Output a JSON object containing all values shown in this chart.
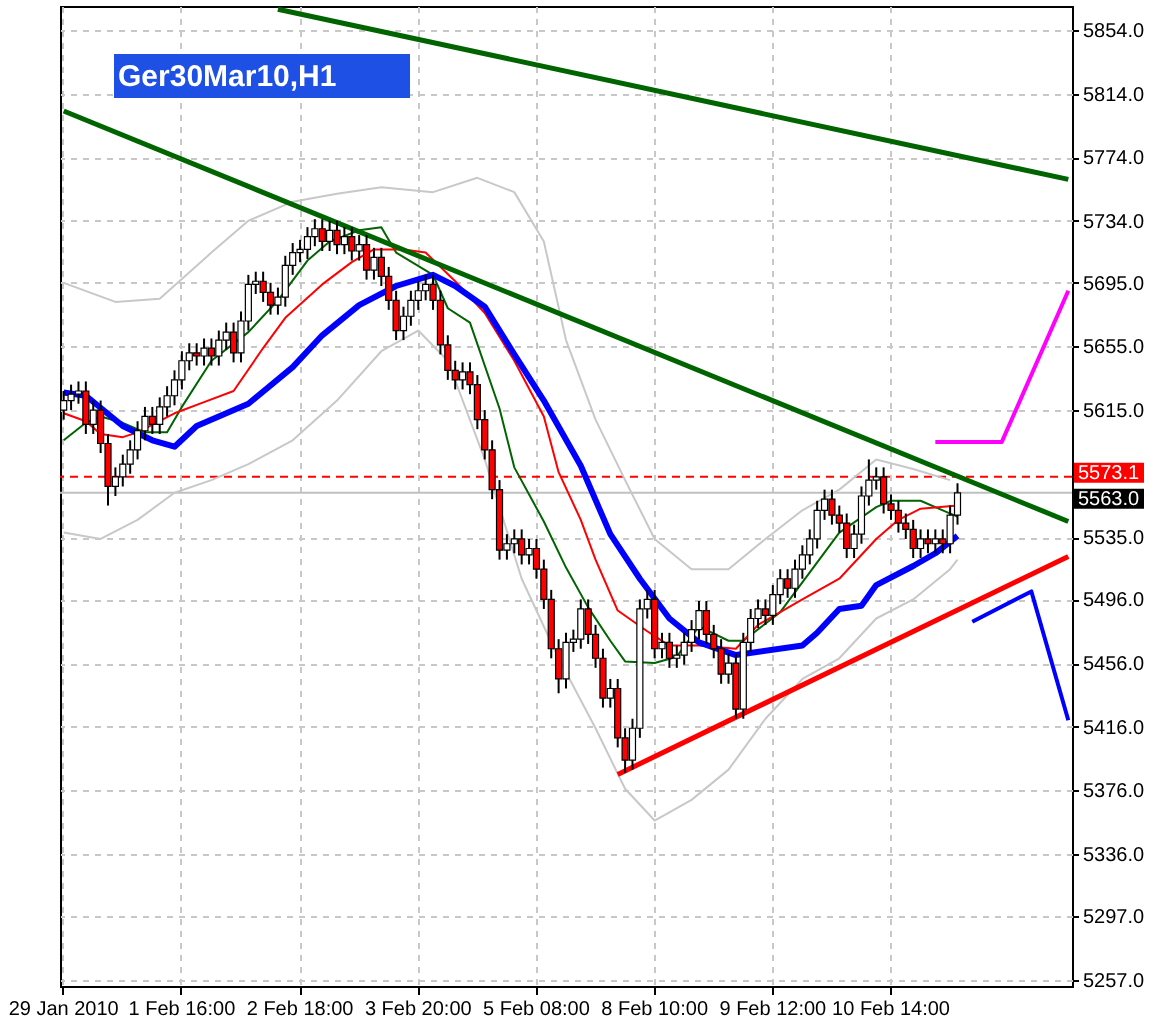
{
  "chart_data": {
    "type": "candlestick",
    "title": "Ger30Mar10,H1",
    "categories": [
      "29 Jan 2010",
      null,
      null,
      null,
      null,
      null,
      null,
      null,
      null,
      null,
      null,
      null,
      null,
      null,
      null,
      null,
      "1 Feb 16:00",
      null,
      null,
      null,
      null,
      null,
      null,
      null,
      null,
      null,
      null,
      null,
      null,
      null,
      null,
      null,
      "2 Feb 18:00",
      null,
      null,
      null,
      null,
      null,
      null,
      null,
      null,
      null,
      null,
      null,
      null,
      null,
      null,
      null,
      "3 Feb 20:00",
      null,
      null,
      null,
      null,
      null,
      null,
      null,
      null,
      null,
      null,
      null,
      null,
      null,
      null,
      null,
      "5 Feb 08:00",
      null,
      null,
      null,
      null,
      null,
      null,
      null,
      null,
      null,
      null,
      null,
      null,
      null,
      null,
      null,
      "8 Feb 10:00",
      null,
      null,
      null,
      null,
      null,
      null,
      null,
      null,
      null,
      null,
      null,
      null,
      null,
      null,
      null,
      "9 Feb 12:00",
      null,
      null,
      null,
      null,
      null,
      null,
      null,
      null,
      null,
      null,
      null,
      null,
      null,
      null,
      null,
      "10 Feb 14:00",
      null,
      null,
      null,
      null,
      null,
      null,
      null,
      null,
      null,
      null,
      null,
      null,
      null,
      null,
      null,
      null,
      null,
      null,
      null,
      null,
      null,
      null,
      null,
      null
    ],
    "ohlc": [
      [
        5615,
        5627,
        5609,
        5621
      ],
      [
        5621,
        5631,
        5615,
        5625
      ],
      [
        5625,
        5633,
        5619,
        5627
      ],
      [
        5627,
        5633,
        5600,
        5606
      ],
      [
        5606,
        5621,
        5600,
        5615
      ],
      [
        5615,
        5621,
        5588,
        5594
      ],
      [
        5594,
        5600,
        5555,
        5567
      ],
      [
        5567,
        5579,
        5561,
        5573
      ],
      [
        5573,
        5587,
        5567,
        5581
      ],
      [
        5581,
        5596,
        5575,
        5590
      ],
      [
        5590,
        5608,
        5584,
        5602
      ],
      [
        5602,
        5617,
        5596,
        5611
      ],
      [
        5611,
        5617,
        5600,
        5606
      ],
      [
        5606,
        5623,
        5600,
        5617
      ],
      [
        5617,
        5630,
        5611,
        5624
      ],
      [
        5624,
        5640,
        5618,
        5634
      ],
      [
        5634,
        5652,
        5628,
        5646
      ],
      [
        5646,
        5657,
        5640,
        5651
      ],
      [
        5651,
        5657,
        5643,
        5649
      ],
      [
        5649,
        5660,
        5643,
        5654
      ],
      [
        5654,
        5660,
        5643,
        5649
      ],
      [
        5649,
        5665,
        5643,
        5659
      ],
      [
        5659,
        5670,
        5653,
        5664
      ],
      [
        5664,
        5670,
        5645,
        5651
      ],
      [
        5651,
        5677,
        5645,
        5671
      ],
      [
        5671,
        5700,
        5665,
        5694
      ],
      [
        5694,
        5702,
        5688,
        5696
      ],
      [
        5696,
        5702,
        5683,
        5689
      ],
      [
        5689,
        5695,
        5675,
        5681
      ],
      [
        5681,
        5692,
        5675,
        5686
      ],
      [
        5686,
        5712,
        5680,
        5706
      ],
      [
        5706,
        5720,
        5700,
        5714
      ],
      [
        5714,
        5722,
        5708,
        5716
      ],
      [
        5716,
        5730,
        5710,
        5724
      ],
      [
        5724,
        5735,
        5718,
        5729
      ],
      [
        5729,
        5735,
        5715,
        5721
      ],
      [
        5721,
        5734,
        5715,
        5728
      ],
      [
        5728,
        5734,
        5713,
        5719
      ],
      [
        5719,
        5730,
        5713,
        5724
      ],
      [
        5724,
        5730,
        5709,
        5715
      ],
      [
        5715,
        5725,
        5709,
        5719
      ],
      [
        5719,
        5725,
        5697,
        5703
      ],
      [
        5703,
        5717,
        5697,
        5711
      ],
      [
        5711,
        5717,
        5693,
        5699
      ],
      [
        5699,
        5705,
        5678,
        5684
      ],
      [
        5684,
        5690,
        5659,
        5665
      ],
      [
        5665,
        5680,
        5659,
        5674
      ],
      [
        5674,
        5690,
        5668,
        5684
      ],
      [
        5684,
        5696,
        5678,
        5690
      ],
      [
        5690,
        5700,
        5684,
        5694
      ],
      [
        5694,
        5700,
        5678,
        5684
      ],
      [
        5684,
        5690,
        5650,
        5656
      ],
      [
        5656,
        5662,
        5634,
        5640
      ],
      [
        5640,
        5646,
        5628,
        5634
      ],
      [
        5634,
        5645,
        5628,
        5639
      ],
      [
        5639,
        5645,
        5625,
        5631
      ],
      [
        5631,
        5637,
        5603,
        5609
      ],
      [
        5609,
        5615,
        5584,
        5590
      ],
      [
        5590,
        5596,
        5559,
        5565
      ],
      [
        5565,
        5571,
        5521,
        5527
      ],
      [
        5527,
        5537,
        5521,
        5531
      ],
      [
        5531,
        5540,
        5525,
        5534
      ],
      [
        5534,
        5540,
        5518,
        5524
      ],
      [
        5524,
        5534,
        5518,
        5528
      ],
      [
        5528,
        5534,
        5509,
        5515
      ],
      [
        5515,
        5521,
        5490,
        5496
      ],
      [
        5496,
        5502,
        5459,
        5465
      ],
      [
        5465,
        5471,
        5437,
        5446
      ],
      [
        5446,
        5475,
        5440,
        5469
      ],
      [
        5469,
        5477,
        5463,
        5471
      ],
      [
        5471,
        5496,
        5465,
        5490
      ],
      [
        5490,
        5496,
        5468,
        5474
      ],
      [
        5474,
        5480,
        5453,
        5459
      ],
      [
        5459,
        5465,
        5428,
        5434
      ],
      [
        5434,
        5446,
        5428,
        5440
      ],
      [
        5440,
        5446,
        5403,
        5409
      ],
      [
        5409,
        5415,
        5387,
        5395
      ],
      [
        5395,
        5421,
        5389,
        5415
      ],
      [
        5415,
        5496,
        5409,
        5490
      ],
      [
        5490,
        5502,
        5484,
        5496
      ],
      [
        5496,
        5502,
        5459,
        5465
      ],
      [
        5465,
        5475,
        5459,
        5469
      ],
      [
        5469,
        5475,
        5453,
        5459
      ],
      [
        5459,
        5467,
        5453,
        5461
      ],
      [
        5461,
        5475,
        5455,
        5469
      ],
      [
        5469,
        5483,
        5463,
        5477
      ],
      [
        5477,
        5495,
        5471,
        5489
      ],
      [
        5489,
        5495,
        5468,
        5474
      ],
      [
        5474,
        5480,
        5459,
        5465
      ],
      [
        5465,
        5471,
        5443,
        5449
      ],
      [
        5449,
        5462,
        5443,
        5456
      ],
      [
        5456,
        5462,
        5421,
        5427
      ],
      [
        5427,
        5475,
        5421,
        5469
      ],
      [
        5469,
        5490,
        5463,
        5484
      ],
      [
        5484,
        5496,
        5478,
        5490
      ],
      [
        5490,
        5496,
        5480,
        5486
      ],
      [
        5486,
        5505,
        5480,
        5499
      ],
      [
        5499,
        5515,
        5493,
        5509
      ],
      [
        5509,
        5515,
        5497,
        5503
      ],
      [
        5503,
        5521,
        5497,
        5515
      ],
      [
        5515,
        5530,
        5509,
        5524
      ],
      [
        5524,
        5540,
        5518,
        5534
      ],
      [
        5534,
        5558,
        5528,
        5552
      ],
      [
        5552,
        5565,
        5546,
        5559
      ],
      [
        5559,
        5565,
        5543,
        5549
      ],
      [
        5549,
        5555,
        5538,
        5544
      ],
      [
        5544,
        5550,
        5522,
        5528
      ],
      [
        5528,
        5543,
        5522,
        5537
      ],
      [
        5537,
        5567,
        5531,
        5561
      ],
      [
        5561,
        5584,
        5555,
        5571
      ],
      [
        5571,
        5579,
        5565,
        5573
      ],
      [
        5573,
        5579,
        5550,
        5556
      ],
      [
        5556,
        5562,
        5546,
        5552
      ],
      [
        5552,
        5558,
        5538,
        5544
      ],
      [
        5544,
        5550,
        5534,
        5540
      ],
      [
        5540,
        5546,
        5522,
        5528
      ],
      [
        5528,
        5540,
        5522,
        5534
      ],
      [
        5534,
        5540,
        5525,
        5531
      ],
      [
        5531,
        5540,
        5525,
        5534
      ],
      [
        5534,
        5540,
        5525,
        5531
      ],
      [
        5531,
        5555,
        5525,
        5549
      ],
      [
        5549,
        5569,
        5543,
        5563
      ],
      null,
      null,
      null,
      null,
      null,
      null,
      null,
      null,
      null,
      null,
      null,
      null,
      null,
      null,
      null
    ],
    "colors": [
      "#ffffff",
      "#ffffff",
      "#ffffff",
      "#ff0000",
      "#ffffff",
      "#ff0000",
      "#ff0000",
      "#ffffff",
      "#ffffff",
      "#ffffff",
      "#ffffff",
      "#ffffff",
      "#ff0000",
      "#ffffff",
      "#ffffff",
      "#ffffff",
      "#ffffff",
      "#ffffff",
      "#ff0000",
      "#ffffff",
      "#ff0000",
      "#ffffff",
      "#ffffff",
      "#ff0000",
      "#ffffff",
      "#ffffff",
      "#ffffff",
      "#ff0000",
      "#ff0000",
      "#ffffff",
      "#ffffff",
      "#ffffff",
      "#ffffff",
      "#ffffff",
      "#ffffff",
      "#ff0000",
      "#ffffff",
      "#ff0000",
      "#ffffff",
      "#ff0000",
      "#ffffff",
      "#ff0000",
      "#ffffff",
      "#ff0000",
      "#ff0000",
      "#ff0000",
      "#ffffff",
      "#ffffff",
      "#ffffff",
      "#ffffff",
      "#ff0000",
      "#ff0000",
      "#ff0000",
      "#ff0000",
      "#ffffff",
      "#ff0000",
      "#ff0000",
      "#ff0000",
      "#ff0000",
      "#ff0000",
      "#ffffff",
      "#ffffff",
      "#ff0000",
      "#ffffff",
      "#ff0000",
      "#ff0000",
      "#ff0000",
      "#ff0000",
      "#ffffff",
      "#ffffff",
      "#ffffff",
      "#ff0000",
      "#ff0000",
      "#ff0000",
      "#ffffff",
      "#ff0000",
      "#ff0000",
      "#ffffff",
      "#ffffff",
      "#ffffff",
      "#ff0000",
      "#ffffff",
      "#ff0000",
      "#ffffff",
      "#ffffff",
      "#ffffff",
      "#ffffff",
      "#ff0000",
      "#ff0000",
      "#ff0000",
      "#ffffff",
      "#ff0000",
      "#ffffff",
      "#ffffff",
      "#ffffff",
      "#ff0000",
      "#ffffff",
      "#ffffff",
      "#ff0000",
      "#ffffff",
      "#ffffff",
      "#ffffff",
      "#ffffff",
      "#ffffff",
      "#ff0000",
      "#ff0000",
      "#ff0000",
      "#ffffff",
      "#ffffff",
      "#ffffff",
      "#ffffff",
      "#ff0000",
      "#ff0000",
      "#ff0000",
      "#ff0000",
      "#ff0000",
      "#ffffff",
      "#ff0000",
      "#ffffff",
      "#ff0000",
      "#ffffff",
      "#ffffff",
      null,
      null,
      null,
      null,
      null,
      null,
      null,
      null,
      null,
      null,
      null,
      null,
      null,
      null,
      null
    ],
    "series": [
      {
        "type": "line",
        "color": "#c8c8c8",
        "values": [
          5695,
          null,
          null,
          null,
          null,
          null,
          null,
          5683,
          null,
          null,
          null,
          null,
          null,
          5685,
          null,
          null,
          null,
          null,
          null,
          null,
          5714,
          null,
          null,
          null,
          null,
          5734,
          null,
          null,
          null,
          null,
          null,
          5746,
          null,
          null,
          null,
          null,
          null,
          5751,
          null,
          null,
          null,
          null,
          null,
          5755,
          null,
          null,
          null,
          null,
          null,
          null,
          5752,
          null,
          null,
          null,
          null,
          null,
          5761,
          null,
          null,
          null,
          null,
          5752,
          null,
          null,
          null,
          5721,
          null,
          null,
          5659,
          null,
          null,
          null,
          5609,
          null,
          null,
          null,
          5571,
          null,
          null,
          null,
          5534,
          null,
          null,
          null,
          null,
          5515,
          null,
          null,
          null,
          null,
          5515,
          null,
          null,
          null,
          null,
          5534,
          null,
          null,
          null,
          null,
          5552,
          null,
          null,
          null,
          null,
          5565,
          null,
          null,
          null,
          null,
          5584,
          null,
          null,
          null,
          null,
          5578,
          null,
          null,
          null,
          null,
          5571,
          null,
          null,
          null,
          null,
          null,
          null,
          null,
          null,
          null,
          null,
          null,
          null,
          null,
          null,
          null,
          null
        ]
      },
      {
        "type": "line",
        "color": "#c8c8c8",
        "values": [
          5538,
          null,
          null,
          null,
          null,
          5534,
          null,
          null,
          null,
          null,
          5546,
          null,
          null,
          null,
          null,
          5563,
          null,
          null,
          null,
          null,
          5571,
          null,
          null,
          null,
          null,
          5581,
          null,
          null,
          null,
          null,
          null,
          5596,
          null,
          null,
          null,
          null,
          null,
          5621,
          null,
          null,
          null,
          null,
          null,
          5652,
          null,
          null,
          null,
          null,
          5665,
          null,
          null,
          null,
          5646,
          null,
          null,
          null,
          null,
          5584,
          null,
          null,
          null,
          null,
          5509,
          null,
          null,
          null,
          null,
          5459,
          null,
          null,
          null,
          null,
          5415,
          null,
          null,
          null,
          5377,
          null,
          null,
          null,
          5357,
          null,
          null,
          null,
          null,
          5370,
          null,
          null,
          null,
          null,
          5389,
          null,
          null,
          null,
          null,
          5421,
          null,
          null,
          null,
          null,
          5446,
          null,
          null,
          null,
          null,
          5459,
          null,
          null,
          null,
          null,
          5484,
          null,
          null,
          null,
          null,
          5496,
          null,
          null,
          null,
          null,
          5515,
          5521,
          null,
          null,
          null,
          null,
          null,
          null,
          null,
          null,
          null,
          null,
          null,
          null,
          null,
          null,
          null
        ]
      },
      {
        "type": "line",
        "color": "#006400",
        "values": [
          5596,
          null,
          null,
          5607,
          null,
          5611,
          null,
          null,
          5607,
          null,
          null,
          5601,
          null,
          null,
          5601,
          null,
          5617,
          null,
          null,
          null,
          5646,
          null,
          null,
          null,
          null,
          5664,
          null,
          null,
          null,
          5684,
          null,
          null,
          null,
          5709,
          null,
          null,
          5721,
          null,
          null,
          null,
          5728,
          null,
          null,
          5730,
          null,
          5714,
          null,
          null,
          null,
          null,
          5700,
          null,
          5679,
          null,
          null,
          5670,
          null,
          null,
          null,
          5616,
          null,
          5579,
          null,
          null,
          null,
          5545,
          null,
          null,
          5516,
          null,
          null,
          5491,
          null,
          null,
          5470,
          null,
          5457,
          null,
          null,
          null,
          5456,
          null,
          null,
          5460,
          null,
          null,
          5479,
          null,
          null,
          null,
          5470,
          null,
          5470,
          null,
          null,
          null,
          null,
          5488,
          null,
          null,
          null,
          5513,
          null,
          null,
          null,
          5538,
          null,
          null,
          null,
          null,
          5554,
          null,
          5558,
          null,
          null,
          null,
          5558,
          null,
          null,
          5552,
          null,
          5548,
          null,
          null,
          null,
          null,
          null,
          null,
          null,
          null,
          null,
          null,
          null,
          null,
          null,
          null,
          null
        ]
      },
      {
        "type": "line",
        "color": "#ff0000",
        "values": [
          5613,
          null,
          null,
          5608,
          null,
          5600,
          null,
          null,
          5598,
          null,
          5601,
          null,
          null,
          null,
          null,
          5613,
          null,
          null,
          null,
          5620,
          null,
          null,
          null,
          5627,
          null,
          null,
          null,
          5654,
          null,
          null,
          5673,
          null,
          null,
          null,
          null,
          5694,
          null,
          null,
          null,
          5708,
          null,
          null,
          5716,
          null,
          null,
          null,
          5716,
          null,
          null,
          5714,
          null,
          null,
          null,
          5696,
          null,
          null,
          null,
          5676,
          null,
          null,
          null,
          5646,
          null,
          null,
          null,
          5611,
          null,
          5576,
          null,
          null,
          5546,
          null,
          5521,
          null,
          null,
          5489,
          null,
          null,
          null,
          5476,
          null,
          null,
          5467,
          null,
          null,
          null,
          5467,
          null,
          null,
          null,
          null,
          5465,
          null,
          null,
          5480,
          null,
          null,
          null,
          null,
          null,
          5496,
          null,
          null,
          null,
          null,
          5509,
          null,
          null,
          null,
          null,
          5534,
          null,
          null,
          5546,
          null,
          null,
          5553,
          null,
          null,
          null,
          null,
          5555,
          null,
          null,
          null,
          null,
          null,
          null,
          null,
          null,
          null,
          null,
          null,
          null,
          null,
          null,
          null
        ]
      },
      {
        "type": "line",
        "color": "#0000ff",
        "values": [
          5626,
          null,
          null,
          5624,
          null,
          null,
          null,
          null,
          5605,
          null,
          null,
          null,
          5596,
          null,
          null,
          5592,
          null,
          null,
          5605,
          null,
          null,
          null,
          null,
          null,
          null,
          5619,
          null,
          null,
          null,
          null,
          null,
          5642,
          null,
          null,
          null,
          5662,
          null,
          null,
          null,
          null,
          5681,
          null,
          null,
          null,
          null,
          5693,
          null,
          null,
          null,
          null,
          5700,
          null,
          null,
          5693,
          null,
          null,
          null,
          5680,
          null,
          null,
          null,
          5650,
          null,
          null,
          null,
          5621,
          null,
          null,
          null,
          null,
          5580,
          null,
          null,
          null,
          5537,
          null,
          null,
          null,
          5509,
          null,
          null,
          null,
          5484,
          null,
          null,
          null,
          5469,
          null,
          null,
          null,
          null,
          5461,
          null,
          null,
          null,
          null,
          null,
          null,
          null,
          null,
          5467,
          null,
          5475,
          null,
          null,
          5490,
          null,
          null,
          5492,
          null,
          5505,
          null,
          null,
          null,
          null,
          5517,
          null,
          null,
          5525,
          null,
          null,
          5536,
          null,
          null,
          null,
          null,
          null,
          null,
          null,
          null,
          null,
          null,
          null,
          null,
          null,
          null,
          null
        ]
      },
      {
        "type": "line",
        "color": "#006400",
        "values": [
          null,
          null,
          null,
          null,
          null,
          null,
          null,
          null,
          null,
          null,
          null,
          null,
          null,
          null,
          null,
          null,
          null,
          null,
          null,
          null,
          null,
          null,
          null,
          null,
          null,
          null,
          null,
          null,
          null,
          5867,
          null,
          null,
          null,
          null,
          null,
          null,
          null,
          null,
          null,
          null,
          null,
          null,
          null,
          null,
          null,
          null,
          null,
          null,
          null,
          null,
          null,
          null,
          null,
          null,
          null,
          null,
          null,
          null,
          null,
          null,
          null,
          null,
          null,
          null,
          null,
          null,
          null,
          null,
          null,
          null,
          null,
          null,
          null,
          null,
          null,
          null,
          null,
          null,
          null,
          null,
          null,
          null,
          null,
          null,
          null,
          null,
          null,
          null,
          null,
          null,
          null,
          null,
          null,
          null,
          null,
          null,
          null,
          null,
          null,
          null,
          null,
          null,
          null,
          null,
          null,
          null,
          null,
          null,
          null,
          null,
          null,
          null,
          null,
          null,
          null,
          null,
          null,
          null,
          null,
          null,
          null,
          null,
          null,
          null,
          null,
          null,
          null,
          null,
          null,
          null,
          null,
          null,
          null,
          null,
          null,
          null,
          5760
        ]
      },
      {
        "type": "line",
        "color": "#006400",
        "values": [
          5803,
          null,
          null,
          null,
          null,
          null,
          null,
          null,
          null,
          null,
          null,
          null,
          null,
          null,
          null,
          null,
          null,
          null,
          null,
          null,
          null,
          null,
          null,
          null,
          null,
          null,
          null,
          null,
          null,
          null,
          null,
          null,
          null,
          null,
          null,
          null,
          null,
          null,
          null,
          null,
          null,
          null,
          null,
          null,
          null,
          null,
          null,
          null,
          null,
          null,
          null,
          null,
          null,
          null,
          null,
          null,
          null,
          null,
          null,
          null,
          null,
          null,
          null,
          null,
          null,
          null,
          null,
          null,
          null,
          null,
          null,
          null,
          null,
          null,
          null,
          null,
          null,
          null,
          null,
          null,
          null,
          null,
          null,
          null,
          null,
          null,
          null,
          null,
          null,
          null,
          null,
          null,
          null,
          null,
          null,
          null,
          null,
          null,
          null,
          null,
          null,
          null,
          null,
          null,
          null,
          null,
          null,
          null,
          null,
          null,
          null,
          null,
          null,
          null,
          null,
          null,
          null,
          null,
          null,
          null,
          null,
          null,
          null,
          null,
          null,
          null,
          null,
          null,
          null,
          null,
          null,
          null,
          null,
          null,
          null,
          null,
          5545
        ]
      },
      {
        "type": "line",
        "color": "#ff0000",
        "values": [
          null,
          null,
          null,
          null,
          null,
          null,
          null,
          null,
          null,
          null,
          null,
          null,
          null,
          null,
          null,
          null,
          null,
          null,
          null,
          null,
          null,
          null,
          null,
          null,
          null,
          null,
          null,
          null,
          null,
          null,
          null,
          null,
          null,
          null,
          null,
          null,
          null,
          null,
          null,
          null,
          null,
          null,
          null,
          null,
          null,
          null,
          null,
          null,
          null,
          null,
          null,
          null,
          null,
          null,
          null,
          null,
          null,
          null,
          null,
          null,
          null,
          null,
          null,
          null,
          null,
          null,
          null,
          null,
          null,
          null,
          null,
          null,
          null,
          null,
          null,
          5386,
          null,
          null,
          null,
          null,
          null,
          null,
          null,
          null,
          null,
          null,
          null,
          null,
          null,
          null,
          null,
          null,
          null,
          null,
          null,
          null,
          null,
          null,
          null,
          null,
          null,
          null,
          null,
          null,
          null,
          null,
          null,
          null,
          null,
          null,
          null,
          null,
          null,
          null,
          null,
          null,
          null,
          null,
          null,
          null,
          null,
          null,
          null,
          null,
          null,
          null,
          null,
          null,
          null,
          null,
          null,
          null,
          null,
          null,
          null,
          null,
          5523
        ]
      },
      {
        "type": "line",
        "color": "#ff00ff",
        "values": [
          null,
          null,
          null,
          null,
          null,
          null,
          null,
          null,
          null,
          null,
          null,
          null,
          null,
          null,
          null,
          null,
          null,
          null,
          null,
          null,
          null,
          null,
          null,
          null,
          null,
          null,
          null,
          null,
          null,
          null,
          null,
          null,
          null,
          null,
          null,
          null,
          null,
          null,
          null,
          null,
          null,
          null,
          null,
          null,
          null,
          null,
          null,
          null,
          null,
          null,
          null,
          null,
          null,
          null,
          null,
          null,
          null,
          null,
          null,
          null,
          null,
          null,
          null,
          null,
          null,
          null,
          null,
          null,
          null,
          null,
          null,
          null,
          null,
          null,
          null,
          null,
          null,
          null,
          null,
          null,
          null,
          null,
          null,
          null,
          null,
          null,
          null,
          null,
          null,
          null,
          null,
          null,
          null,
          null,
          null,
          null,
          null,
          null,
          null,
          null,
          null,
          null,
          null,
          null,
          null,
          null,
          null,
          null,
          null,
          null,
          null,
          null,
          null,
          null,
          null,
          null,
          null,
          null,
          5595,
          null,
          null,
          null,
          null,
          null,
          null,
          null,
          null,
          5595,
          null,
          null,
          null,
          null,
          null,
          null,
          null,
          null,
          5690
        ]
      },
      {
        "type": "line",
        "color": "#0000ff",
        "values": [
          null,
          null,
          null,
          null,
          null,
          null,
          null,
          null,
          null,
          null,
          null,
          null,
          null,
          null,
          null,
          null,
          null,
          null,
          null,
          null,
          null,
          null,
          null,
          null,
          null,
          null,
          null,
          null,
          null,
          null,
          null,
          null,
          null,
          null,
          null,
          null,
          null,
          null,
          null,
          null,
          null,
          null,
          null,
          null,
          null,
          null,
          null,
          null,
          null,
          null,
          null,
          null,
          null,
          null,
          null,
          null,
          null,
          null,
          null,
          null,
          null,
          null,
          null,
          null,
          null,
          null,
          null,
          null,
          null,
          null,
          null,
          null,
          null,
          null,
          null,
          null,
          null,
          null,
          null,
          null,
          null,
          null,
          null,
          null,
          null,
          null,
          null,
          null,
          null,
          null,
          null,
          null,
          null,
          null,
          null,
          null,
          null,
          null,
          null,
          null,
          null,
          null,
          null,
          null,
          null,
          null,
          null,
          null,
          null,
          null,
          null,
          null,
          null,
          null,
          null,
          null,
          null,
          null,
          null,
          null,
          null,
          null,
          null,
          5482,
          null,
          null,
          null,
          null,
          null,
          null,
          null,
          5501,
          null,
          null,
          null,
          null,
          5420
        ]
      }
    ],
    "ylim": [
      5253,
      5869
    ],
    "yticks": [
      {
        "value": 5854,
        "label": "5854.0"
      },
      {
        "value": 5814,
        "label": "5814.0"
      },
      {
        "value": 5774,
        "label": "5774.0"
      },
      {
        "value": 5734,
        "label": "5734.0"
      },
      {
        "value": 5695,
        "label": "5695.0"
      },
      {
        "value": 5655,
        "label": "5655.0"
      },
      {
        "value": 5615,
        "label": "5615.0"
      },
      {
        "value": 5535,
        "label": "5535.0"
      },
      {
        "value": 5496,
        "label": "5496.0"
      },
      {
        "value": 5456,
        "label": "5456.0"
      },
      {
        "value": 5416,
        "label": "5416.0"
      },
      {
        "value": 5376,
        "label": "5376.0"
      },
      {
        "value": 5336,
        "label": "5336.0"
      },
      {
        "value": 5297,
        "label": "5297.0"
      },
      {
        "value": 5257,
        "label": "5257.0"
      }
    ],
    "grid": true,
    "ref_lines": [
      {
        "axis": "y",
        "value": 5573.1,
        "label": "5573.1",
        "color": "#ff0000",
        "line_style": "dashed"
      },
      {
        "axis": "y",
        "value": 5563.0,
        "label": "5563.0",
        "color": "#c0c0c0",
        "line_style": "solid"
      }
    ]
  }
}
